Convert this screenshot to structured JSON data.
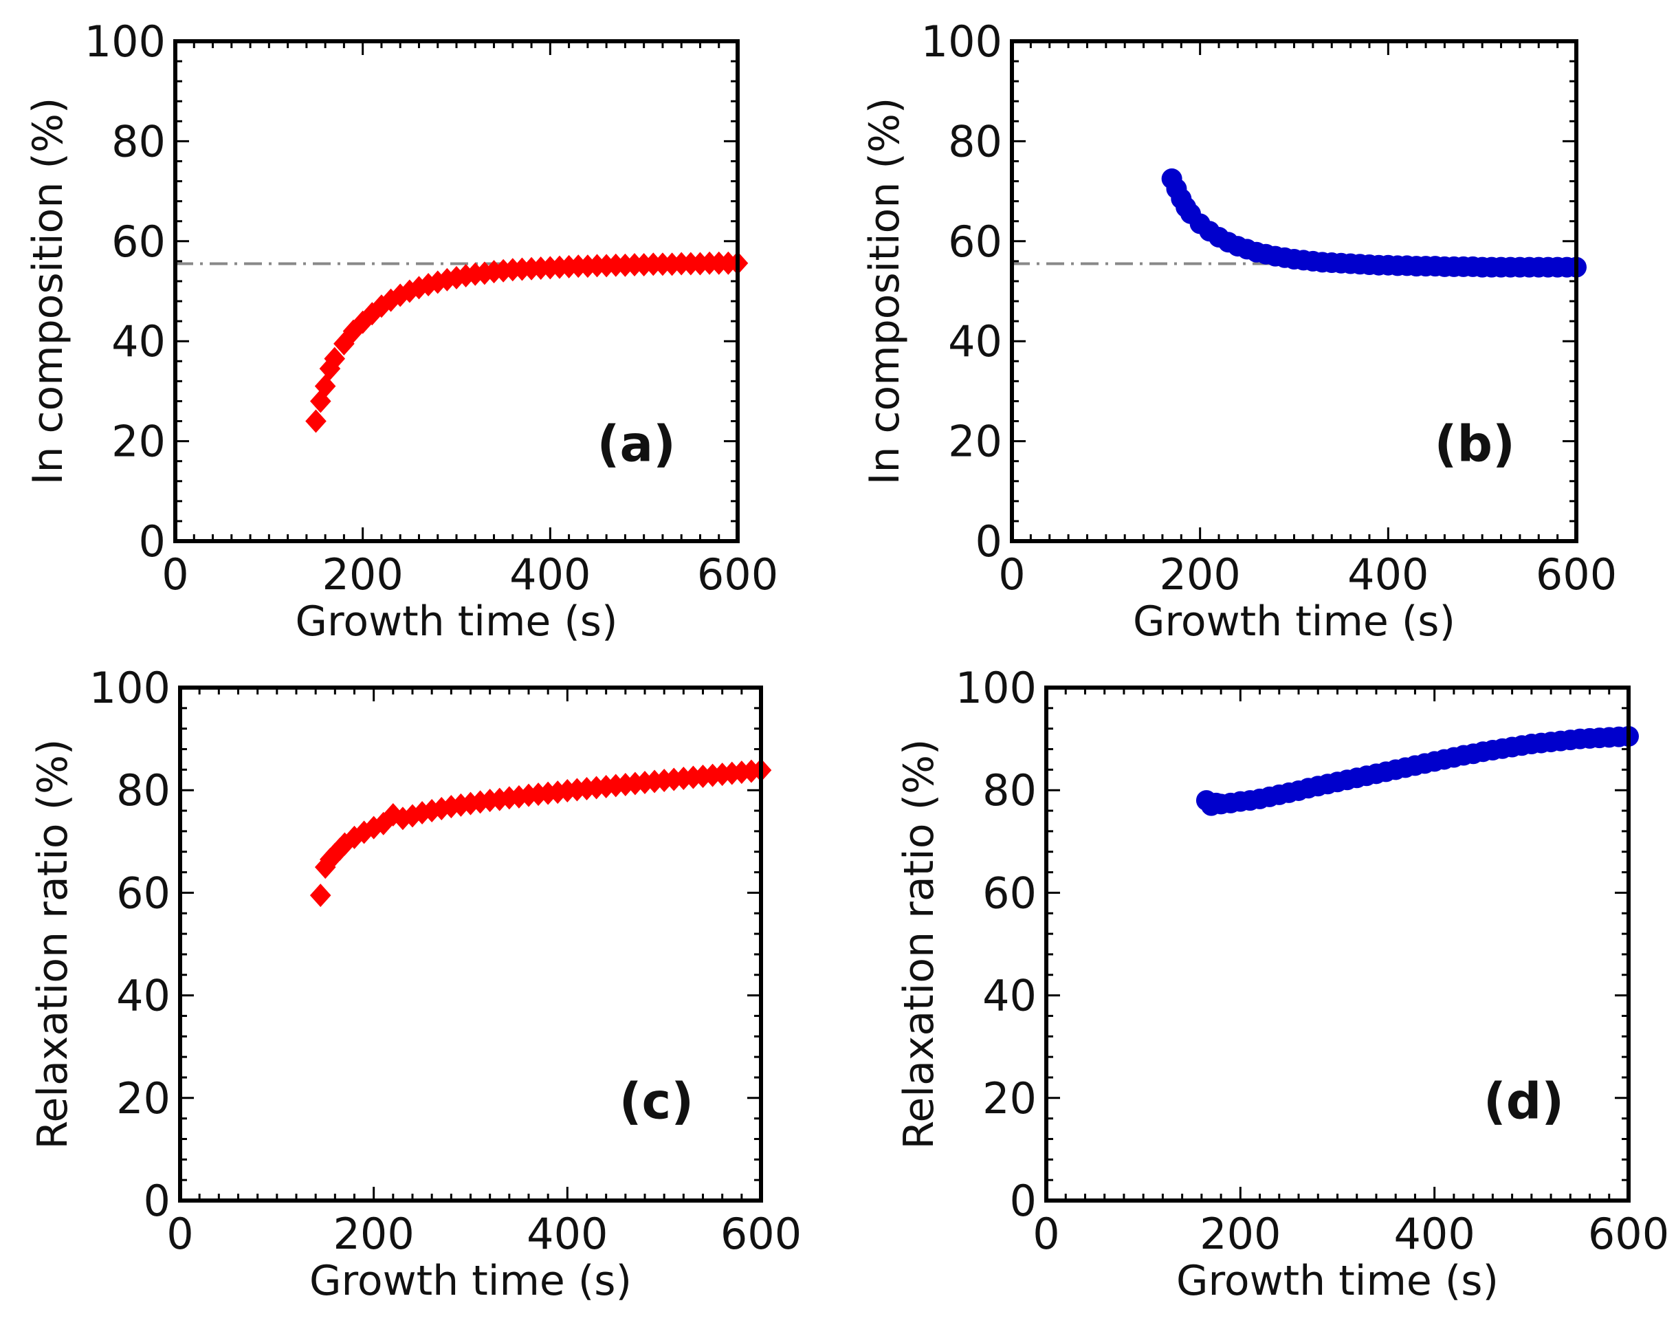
{
  "chart_data": [
    {
      "type": "scatter",
      "panel": "(a)",
      "xlabel": "Growth time (s)",
      "ylabel": "In composition (%)",
      "xlim": [
        0,
        600
      ],
      "ylim": [
        0,
        100
      ],
      "xticks": [
        "0",
        "200",
        "400",
        "600"
      ],
      "yticks": [
        "0",
        "20",
        "40",
        "60",
        "80",
        "100"
      ],
      "reference_line": {
        "y": 55.5,
        "style": "dash-dot",
        "color": "#888888"
      },
      "series": [
        {
          "name": "(a)",
          "marker": "diamond",
          "color": "#ff0000",
          "x": [
            150,
            155,
            160,
            165,
            170,
            180,
            190,
            200,
            210,
            220,
            230,
            240,
            250,
            260,
            270,
            280,
            290,
            300,
            310,
            320,
            330,
            340,
            350,
            360,
            370,
            380,
            390,
            400,
            410,
            420,
            430,
            440,
            450,
            460,
            470,
            480,
            490,
            500,
            510,
            520,
            530,
            540,
            550,
            560,
            570,
            580,
            590,
            600
          ],
          "y": [
            24,
            28,
            31,
            34.5,
            36.5,
            39.5,
            42,
            43.8,
            45.5,
            47,
            48.2,
            49.2,
            50,
            50.7,
            51.3,
            51.8,
            52.3,
            52.7,
            53.1,
            53.4,
            53.6,
            53.9,
            54.1,
            54.3,
            54.4,
            54.5,
            54.6,
            54.7,
            54.8,
            54.9,
            55,
            55,
            55.1,
            55.1,
            55.2,
            55.2,
            55.3,
            55.3,
            55.4,
            55.4,
            55.4,
            55.5,
            55.5,
            55.5,
            55.6,
            55.6,
            55.6,
            55.6
          ]
        }
      ]
    },
    {
      "type": "scatter",
      "panel": "(b)",
      "xlabel": "Growth time (s)",
      "ylabel": "In composition (%)",
      "xlim": [
        0,
        600
      ],
      "ylim": [
        0,
        100
      ],
      "xticks": [
        "0",
        "200",
        "400",
        "600"
      ],
      "yticks": [
        "0",
        "20",
        "40",
        "60",
        "80",
        "100"
      ],
      "reference_line": {
        "y": 55.5,
        "style": "dash-dot",
        "color": "#888888"
      },
      "series": [
        {
          "name": "(b)",
          "marker": "circle",
          "color": "#0000cc",
          "x": [
            170,
            175,
            180,
            185,
            190,
            200,
            210,
            220,
            230,
            240,
            250,
            260,
            270,
            280,
            290,
            300,
            310,
            320,
            330,
            340,
            350,
            360,
            370,
            380,
            390,
            400,
            410,
            420,
            430,
            440,
            450,
            460,
            470,
            480,
            490,
            500,
            510,
            520,
            530,
            540,
            550,
            560,
            570,
            580,
            590,
            600
          ],
          "y": [
            72.5,
            70.5,
            68.5,
            66.8,
            65.5,
            63.5,
            62,
            60.8,
            59.8,
            59,
            58.4,
            57.8,
            57.4,
            57,
            56.7,
            56.4,
            56.2,
            56,
            55.8,
            55.7,
            55.6,
            55.5,
            55.4,
            55.3,
            55.2,
            55.2,
            55.1,
            55.1,
            55,
            55,
            55,
            54.9,
            54.9,
            54.9,
            54.9,
            54.8,
            54.8,
            54.8,
            54.8,
            54.8,
            54.8,
            54.8,
            54.8,
            54.8,
            54.8,
            54.8
          ]
        }
      ]
    },
    {
      "type": "scatter",
      "panel": "(c)",
      "xlabel": "Growth time (s)",
      "ylabel": "Relaxation ratio (%)",
      "xlim": [
        0,
        600
      ],
      "ylim": [
        0,
        100
      ],
      "xticks": [
        "0",
        "200",
        "400",
        "600"
      ],
      "yticks": [
        "0",
        "20",
        "40",
        "60",
        "80",
        "100"
      ],
      "series": [
        {
          "name": "(c)",
          "marker": "diamond",
          "color": "#ff0000",
          "x": [
            145,
            150,
            155,
            160,
            165,
            170,
            180,
            190,
            200,
            210,
            220,
            230,
            240,
            250,
            260,
            270,
            280,
            290,
            300,
            310,
            320,
            330,
            340,
            350,
            360,
            370,
            380,
            390,
            400,
            410,
            420,
            430,
            440,
            450,
            460,
            470,
            480,
            490,
            500,
            510,
            520,
            530,
            540,
            550,
            560,
            570,
            580,
            590,
            600
          ],
          "y": [
            59.5,
            65,
            66.5,
            67.5,
            68.5,
            69.5,
            70.8,
            71.8,
            72.7,
            73.5,
            75.2,
            74.5,
            75,
            75.6,
            76,
            76.4,
            76.8,
            77.1,
            77.4,
            77.7,
            78,
            78.2,
            78.5,
            78.7,
            79,
            79.2,
            79.4,
            79.6,
            79.9,
            80.1,
            80.3,
            80.5,
            80.7,
            80.9,
            81.1,
            81.3,
            81.5,
            81.7,
            81.9,
            82.1,
            82.3,
            82.5,
            82.7,
            82.9,
            83.1,
            83.3,
            83.5,
            83.7,
            83.9
          ]
        }
      ]
    },
    {
      "type": "scatter",
      "panel": "(d)",
      "xlabel": "Growth time (s)",
      "ylabel": "Relaxation ratio (%)",
      "xlim": [
        0,
        600
      ],
      "ylim": [
        0,
        100
      ],
      "xticks": [
        "0",
        "200",
        "400",
        "600"
      ],
      "yticks": [
        "0",
        "20",
        "40",
        "60",
        "80",
        "100"
      ],
      "series": [
        {
          "name": "(d)",
          "marker": "circle",
          "color": "#0000cc",
          "x": [
            165,
            170,
            175,
            180,
            190,
            200,
            210,
            220,
            230,
            240,
            250,
            260,
            270,
            280,
            290,
            300,
            310,
            320,
            330,
            340,
            350,
            360,
            370,
            380,
            390,
            400,
            410,
            420,
            430,
            440,
            450,
            460,
            470,
            480,
            490,
            500,
            510,
            520,
            530,
            540,
            550,
            560,
            570,
            580,
            590,
            600
          ],
          "y": [
            78,
            77,
            77.5,
            77.3,
            77.5,
            77.8,
            78,
            78.3,
            78.7,
            79.1,
            79.5,
            79.9,
            80.4,
            80.8,
            81.2,
            81.6,
            82,
            82.4,
            82.8,
            83.2,
            83.6,
            84,
            84.4,
            84.8,
            85.2,
            85.6,
            86,
            86.4,
            86.8,
            87.1,
            87.5,
            87.8,
            88.1,
            88.4,
            88.7,
            89,
            89.2,
            89.4,
            89.6,
            89.8,
            90,
            90.1,
            90.2,
            90.3,
            90.4,
            90.5
          ]
        }
      ]
    }
  ]
}
